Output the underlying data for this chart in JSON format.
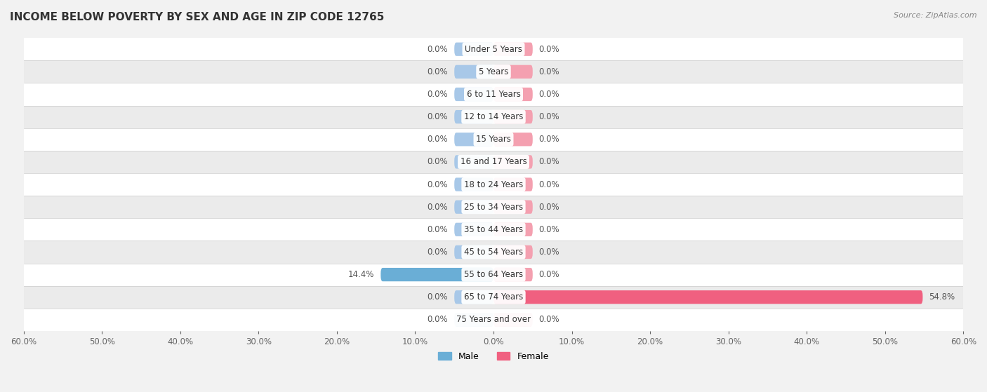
{
  "title": "INCOME BELOW POVERTY BY SEX AND AGE IN ZIP CODE 12765",
  "source": "Source: ZipAtlas.com",
  "categories": [
    "Under 5 Years",
    "5 Years",
    "6 to 11 Years",
    "12 to 14 Years",
    "15 Years",
    "16 and 17 Years",
    "18 to 24 Years",
    "25 to 34 Years",
    "35 to 44 Years",
    "45 to 54 Years",
    "55 to 64 Years",
    "65 to 74 Years",
    "75 Years and over"
  ],
  "male_values": [
    0.0,
    0.0,
    0.0,
    0.0,
    0.0,
    0.0,
    0.0,
    0.0,
    0.0,
    0.0,
    14.4,
    0.0,
    0.0
  ],
  "female_values": [
    0.0,
    0.0,
    0.0,
    0.0,
    0.0,
    0.0,
    0.0,
    0.0,
    0.0,
    0.0,
    0.0,
    54.8,
    0.0
  ],
  "male_color": "#a8c8e8",
  "male_color_full": "#6aaed6",
  "female_color": "#f4a0b0",
  "female_color_full": "#f06080",
  "bar_height": 0.6,
  "min_bar": 5.0,
  "xlim": 60.0,
  "background_color": "#f2f2f2",
  "row_bg_even": "#ffffff",
  "row_bg_odd": "#ebebeb",
  "title_fontsize": 11,
  "label_fontsize": 8.5,
  "value_fontsize": 8.5,
  "tick_fontsize": 8.5,
  "source_fontsize": 8,
  "legend_fontsize": 9
}
